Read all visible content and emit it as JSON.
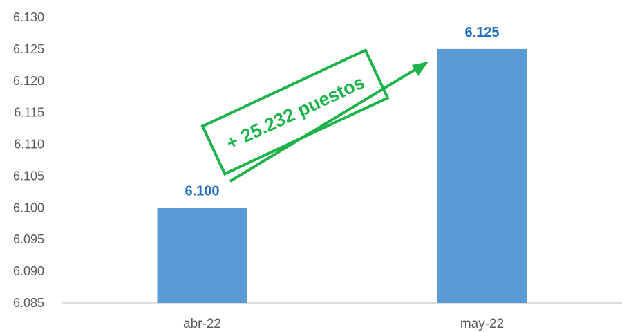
{
  "chart_data": {
    "type": "bar",
    "categories": [
      "abr-22",
      "may-22"
    ],
    "values": [
      6.1,
      6.125
    ],
    "data_labels": [
      "6.100",
      "6.125"
    ],
    "ylim": [
      6.085,
      6.13
    ],
    "yticks": [
      "6.130",
      "6.125",
      "6.120",
      "6.115",
      "6.110",
      "6.105",
      "6.100",
      "6.095",
      "6.090",
      "6.085"
    ],
    "grid": false,
    "legend": "none",
    "annotation": {
      "text": "+ 25.232 puestos"
    }
  },
  "colors": {
    "bar": "#5b9bd5",
    "data_label": "#1f6fc0",
    "annotation": "#1db34a",
    "axis": "#bfbfbf",
    "tick_text": "#595959"
  }
}
